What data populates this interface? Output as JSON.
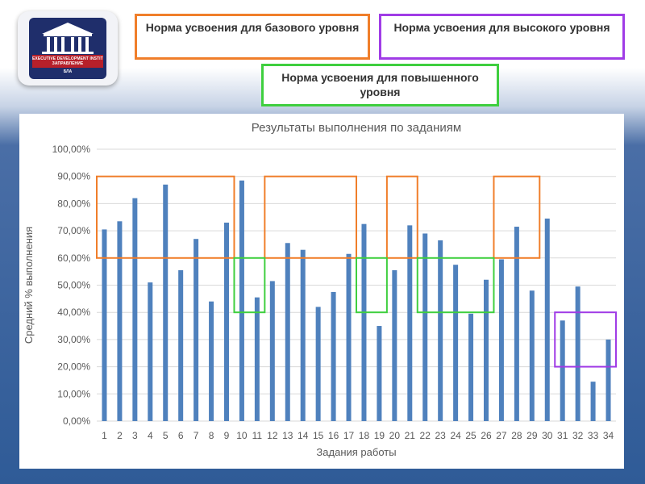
{
  "logo": {
    "text_line1": "EXECUTIVE DEVELOPMENT INSTITUTE",
    "text_line2": "ЗАПРАВЛЕНИЕ",
    "text_line3": "БЛА"
  },
  "legend": {
    "base_label": "Норма усвоения для базового уровня",
    "high_label": "Норма усвоения для высокого уровня",
    "advanced_label": "Норма усвоения для повышенного уровня"
  },
  "colors": {
    "bar": "#4f81bd",
    "base": "#f07e2a",
    "high": "#a03ce6",
    "advanced": "#3fcf3f",
    "grid": "#d9d9d9",
    "text": "#595959"
  },
  "chart_data": {
    "type": "bar",
    "title": "Результаты выполнения по заданиям",
    "xlabel": "Задания работы",
    "ylabel": "Средний % выполнения",
    "ylim": [
      0,
      100
    ],
    "y_ticks": [
      "0,00%",
      "10,00%",
      "20,00%",
      "30,00%",
      "40,00%",
      "50,00%",
      "60,00%",
      "70,00%",
      "80,00%",
      "90,00%",
      "100,00%"
    ],
    "categories": [
      "1",
      "2",
      "3",
      "4",
      "5",
      "6",
      "7",
      "8",
      "9",
      "10",
      "11",
      "12",
      "13",
      "14",
      "15",
      "16",
      "17",
      "18",
      "19",
      "20",
      "21",
      "22",
      "23",
      "24",
      "25",
      "26",
      "27",
      "28",
      "29",
      "30",
      "31",
      "32",
      "33",
      "34"
    ],
    "values": [
      70.5,
      73.5,
      82,
      51,
      87,
      55.5,
      67,
      44,
      73,
      88.5,
      45.5,
      51.5,
      65.5,
      63,
      42,
      47.5,
      61.5,
      72.5,
      35,
      55.5,
      72,
      69,
      66.5,
      57.5,
      39.5,
      52,
      59.5,
      71.5,
      48,
      74.5,
      37,
      49.5,
      14.5,
      30
    ],
    "grid": true,
    "highlight_regions": [
      {
        "level": "base",
        "from_task": 1,
        "to_task": 9,
        "y_range": [
          60,
          90
        ]
      },
      {
        "level": "base",
        "from_task": 12,
        "to_task": 17,
        "y_range": [
          60,
          90
        ]
      },
      {
        "level": "base",
        "from_task": 20,
        "to_task": 21,
        "y_range": [
          60,
          90
        ]
      },
      {
        "level": "base",
        "from_task": 27,
        "to_task": 29,
        "y_range": [
          60,
          90
        ]
      },
      {
        "level": "advanced",
        "from_task": 10,
        "to_task": 11,
        "y_range": [
          40,
          60
        ]
      },
      {
        "level": "advanced",
        "from_task": 18,
        "to_task": 19,
        "y_range": [
          40,
          60
        ]
      },
      {
        "level": "advanced",
        "from_task": 22,
        "to_task": 26,
        "y_range": [
          40,
          60
        ]
      },
      {
        "level": "high",
        "from_task": 31,
        "to_task": 34,
        "y_range": [
          20,
          40
        ]
      }
    ]
  }
}
